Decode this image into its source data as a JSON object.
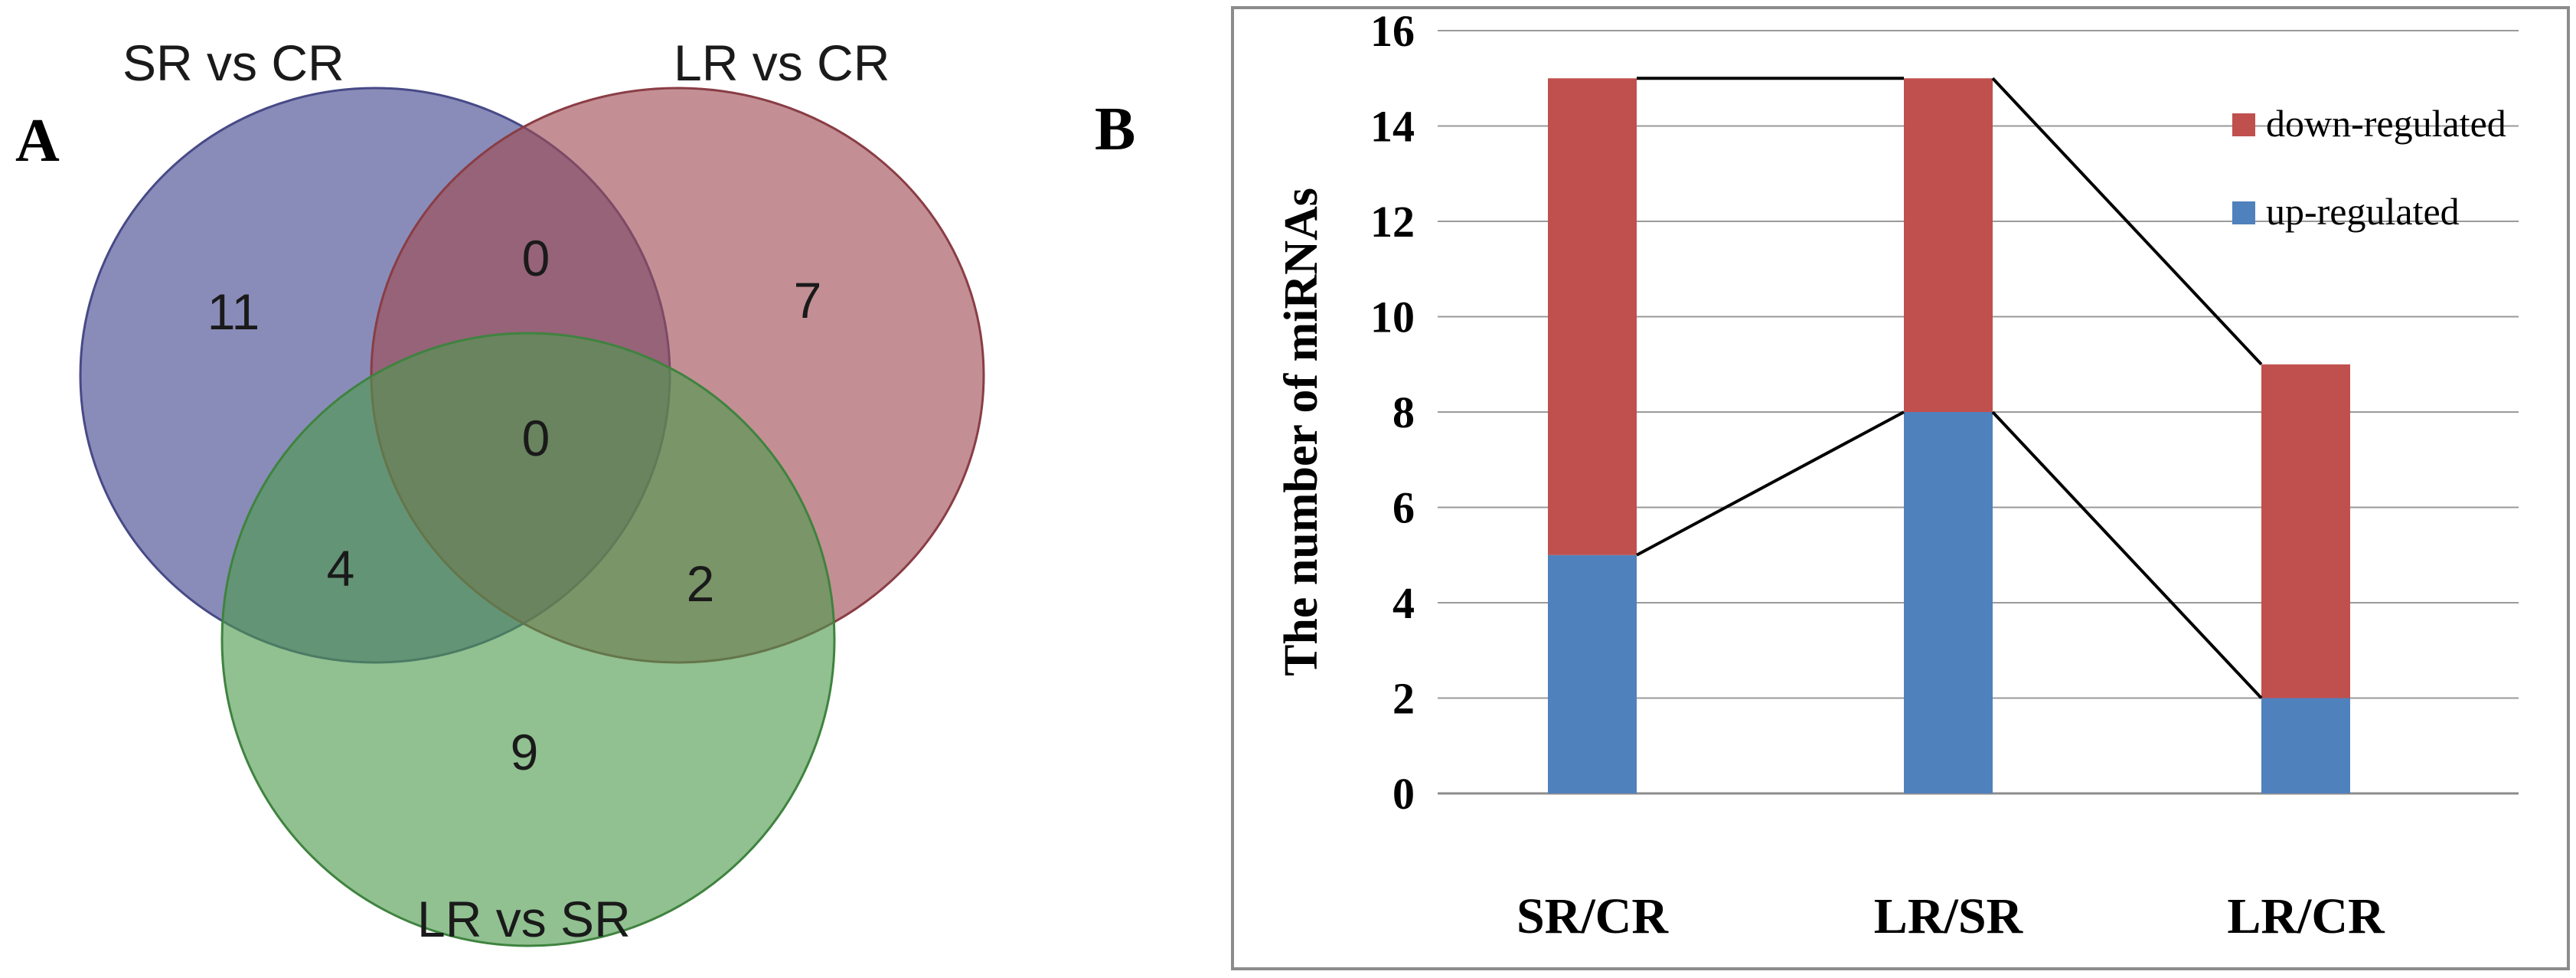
{
  "panels": {
    "venn_letter": "A",
    "bar_letter": "B"
  },
  "venn": {
    "sets": [
      {
        "name": "SR vs CR",
        "color": "#5c5f9e"
      },
      {
        "name": "LR vs CR",
        "color": "#9e4a52"
      },
      {
        "name": "LR vs SR",
        "color": "#4e9a4e"
      }
    ],
    "regions": {
      "sr_only": "11",
      "lr_cr_only": "7",
      "lr_sr_only": "9",
      "sr_and_lrcr": "0",
      "sr_and_lrsr": "4",
      "lrcr_and_lrsr": "2",
      "all_three": "0"
    }
  },
  "chart_data": {
    "type": "bar",
    "stacked": true,
    "categories": [
      "SR/CR",
      "LR/SR",
      "LR/CR"
    ],
    "series": [
      {
        "name": "up-regulated",
        "values": [
          5,
          8,
          2
        ],
        "color": "#4f81bd"
      },
      {
        "name": "down-regulated",
        "values": [
          10,
          7,
          7
        ],
        "color": "#c0504d"
      }
    ],
    "totals": [
      15,
      15,
      9
    ],
    "title": "",
    "xlabel": "",
    "ylabel": "The number of miRNAs",
    "ylim": [
      0,
      16
    ],
    "yticks": [
      0,
      2,
      4,
      6,
      8,
      10,
      12,
      14,
      16
    ],
    "grid": true,
    "legend": {
      "position": "top-right",
      "order": [
        "down-regulated",
        "up-regulated"
      ]
    },
    "connector_lines": true
  }
}
